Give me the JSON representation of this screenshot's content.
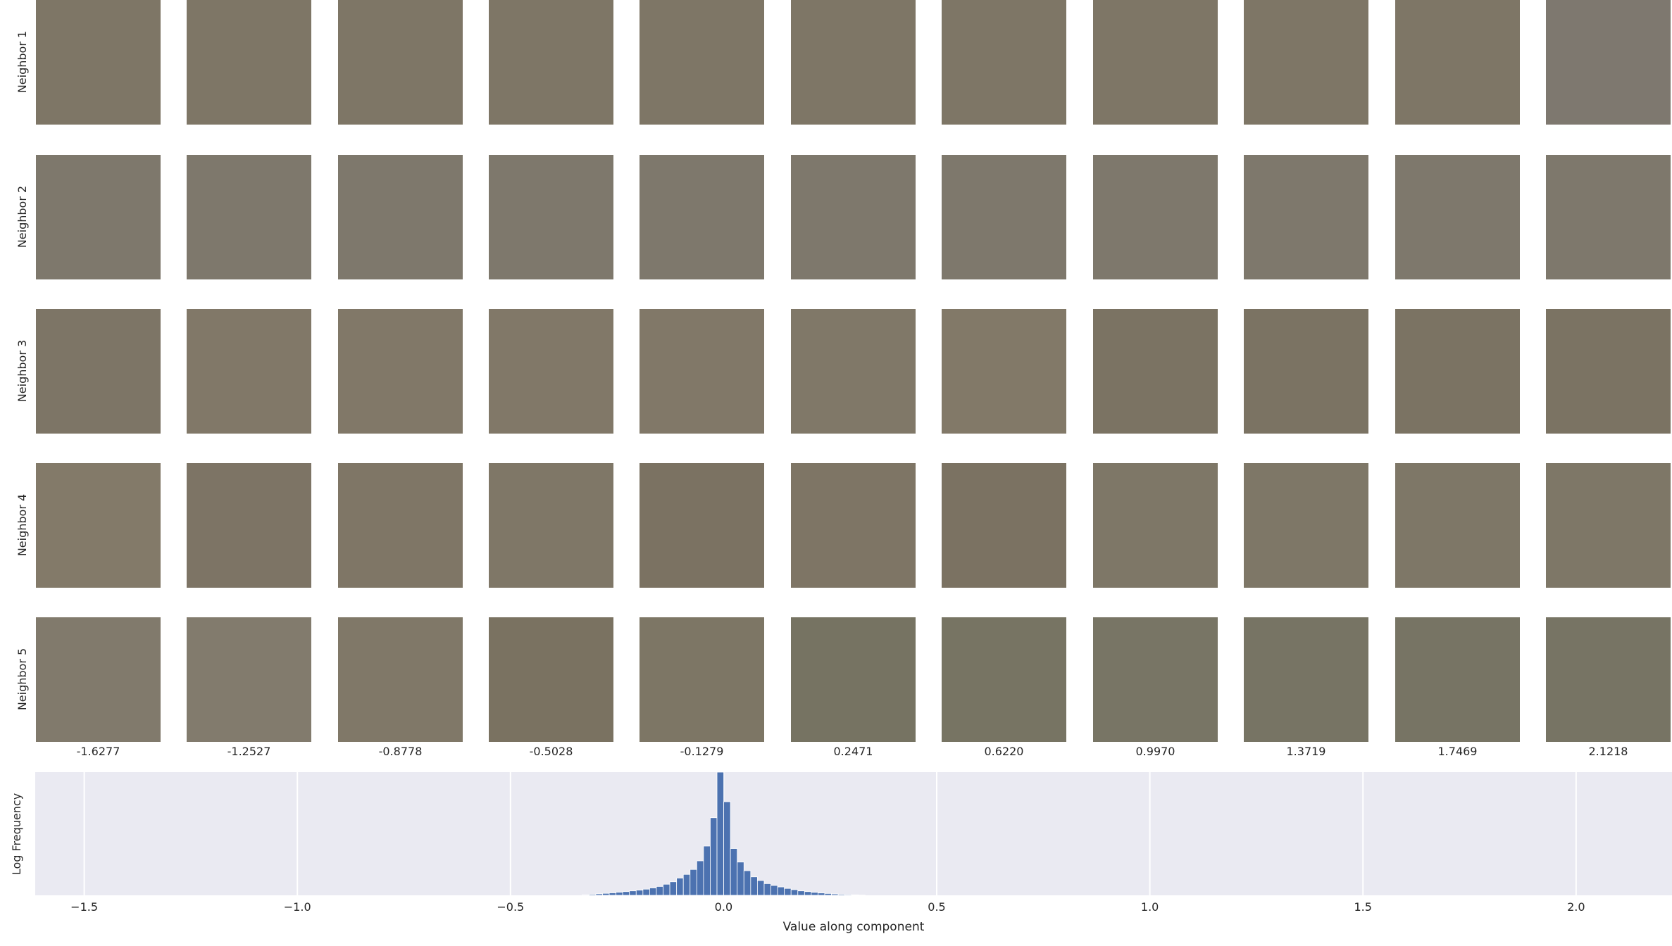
{
  "row_labels": [
    "Neighbor 1",
    "Neighbor 2",
    "Neighbor 3",
    "Neighbor 4",
    "Neighbor 5"
  ],
  "column_values": [
    "-1.6277",
    "-1.2527",
    "-0.8778",
    "-0.5028",
    "-0.1279",
    "0.2471",
    "0.6220",
    "0.9970",
    "1.3719",
    "1.7469",
    "2.1218"
  ],
  "tile_colors": [
    [
      "#7e7666",
      "#7e7666",
      "#7e7666",
      "#7e7666",
      "#7e7666",
      "#7e7666",
      "#7e7666",
      "#7e7666",
      "#7e7666",
      "#7e7666",
      "#7e786f"
    ],
    [
      "#7e786c",
      "#7e786c",
      "#7e786c",
      "#7e786c",
      "#7e786c",
      "#7e786c",
      "#7e786c",
      "#7e786c",
      "#7e786c",
      "#7e786c",
      "#7e786c"
    ],
    [
      "#7d7566",
      "#817868",
      "#817868",
      "#817868",
      "#817868",
      "#807868",
      "#827968",
      "#7b7363",
      "#7b7363",
      "#7b7363",
      "#7b7363"
    ],
    [
      "#837a69",
      "#7d7465",
      "#7f7666",
      "#7f7767",
      "#7b7262",
      "#7e7565",
      "#7b7262",
      "#7e7767",
      "#7e7767",
      "#7e7767",
      "#7e7767"
    ],
    [
      "#817a6c",
      "#827b6d",
      "#807868",
      "#7a7261",
      "#7d7665",
      "#767362",
      "#777463",
      "#787565",
      "#777464",
      "#777464",
      "#777464"
    ]
  ],
  "chart_data": {
    "type": "bar",
    "title": "",
    "xlabel": "Value along component",
    "ylabel": "Log Frequency",
    "xlim": [
      -1.615,
      2.225
    ],
    "xticks": [
      -1.5,
      -1.0,
      -0.5,
      0.0,
      0.5,
      1.0,
      1.5,
      2.0
    ],
    "xtick_labels": [
      "−1.5",
      "−1.0",
      "−0.5",
      "0.0",
      "0.5",
      "1.0",
      "1.5",
      "2.0"
    ],
    "ylim": [
      0,
      1
    ],
    "grid": true,
    "bar_color": "#4c72b0",
    "bin_width": 0.0158,
    "x": [
      -0.3236,
      -0.3078,
      -0.292,
      -0.2762,
      -0.2604,
      -0.2446,
      -0.2288,
      -0.213,
      -0.1972,
      -0.1814,
      -0.1656,
      -0.1498,
      -0.134,
      -0.1182,
      -0.1024,
      -0.0866,
      -0.0708,
      -0.055,
      -0.0392,
      -0.0234,
      -0.0076,
      0.0082,
      0.024,
      0.0398,
      0.0556,
      0.0714,
      0.0872,
      0.103,
      0.1188,
      0.1346,
      0.1504,
      0.1662,
      0.182,
      0.1978,
      0.2136,
      0.2294,
      0.2452,
      0.261,
      0.2768,
      0.2926,
      0.3084,
      0.3242
    ],
    "values": [
      0.005,
      0.008,
      0.012,
      0.016,
      0.02,
      0.025,
      0.03,
      0.036,
      0.042,
      0.05,
      0.06,
      0.072,
      0.09,
      0.11,
      0.14,
      0.17,
      0.21,
      0.28,
      0.4,
      0.63,
      1.0,
      0.76,
      0.38,
      0.27,
      0.2,
      0.15,
      0.12,
      0.095,
      0.08,
      0.068,
      0.056,
      0.046,
      0.036,
      0.03,
      0.024,
      0.019,
      0.015,
      0.011,
      0.008,
      0.006,
      0.004,
      0.002
    ]
  }
}
